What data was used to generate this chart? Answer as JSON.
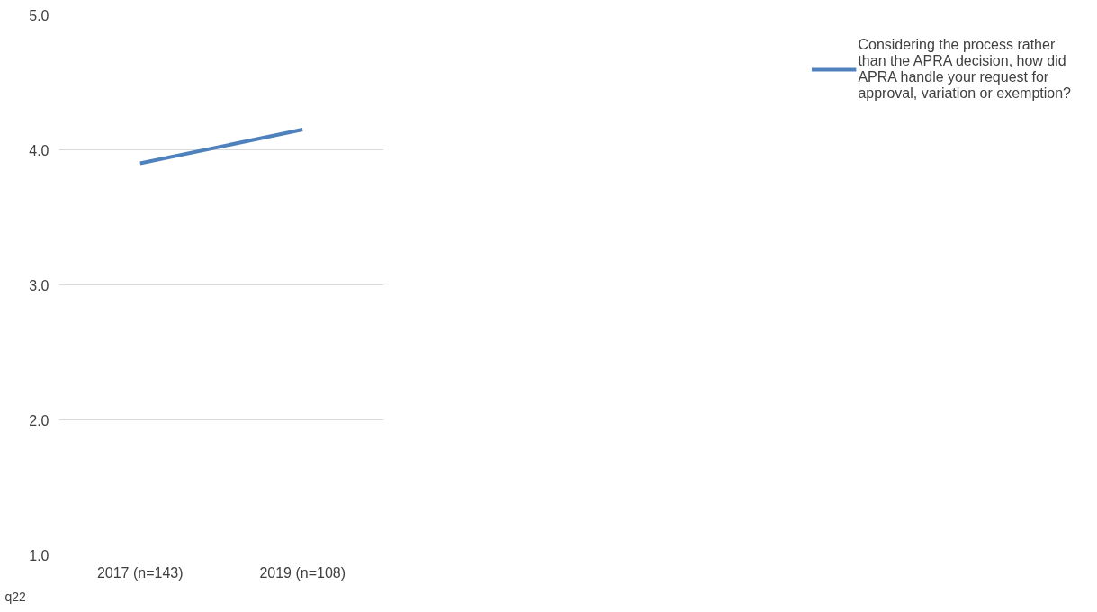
{
  "chart_data": {
    "type": "line",
    "categories": [
      "2017 (n=143)",
      "2019 (n=108)"
    ],
    "series": [
      {
        "name": "Considering the process rather than the APRA decision, how did APRA handle your request for approval, variation or exemption?",
        "color": "#4f81bd",
        "values": [
          3.9,
          4.15
        ]
      }
    ],
    "ylim": [
      1.0,
      5.0
    ],
    "yticks": [
      {
        "value": 1,
        "label": "1.0"
      },
      {
        "value": 2,
        "label": "2.0"
      },
      {
        "value": 3,
        "label": "3.0"
      },
      {
        "value": 4,
        "label": "4.0"
      },
      {
        "value": 5,
        "label": "5.0"
      }
    ],
    "grid": "y",
    "legend": "right",
    "marker": "none",
    "line_style": "solid",
    "annotations": [
      "q22"
    ]
  }
}
